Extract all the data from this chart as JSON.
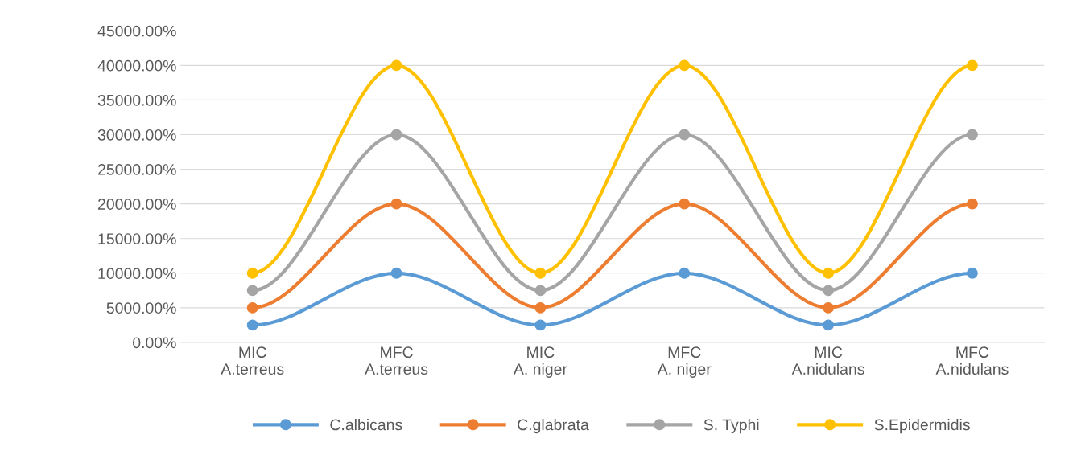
{
  "chart_data": {
    "type": "line",
    "categories": [
      "MIC\nA.terreus",
      "MFC\nA.terreus",
      "MIC\nA. niger",
      "MFC\nA. niger",
      "MIC\nA.nidulans",
      "MFC\nA.nidulans"
    ],
    "series": [
      {
        "name": "C.albicans",
        "color": "#5b9bd5",
        "values": [
          2500,
          10000,
          2500,
          10000,
          2500,
          10000
        ]
      },
      {
        "name": "C.glabrata",
        "color": "#ed7d31",
        "values": [
          5000,
          20000,
          5000,
          20000,
          5000,
          20000
        ]
      },
      {
        "name": "S. Typhi",
        "color": "#a5a5a5",
        "values": [
          7500,
          30000,
          7500,
          30000,
          7500,
          30000
        ]
      },
      {
        "name": "S.Epidermidis",
        "color": "#ffc000",
        "values": [
          10000,
          40000,
          10000,
          40000,
          10000,
          40000
        ]
      }
    ],
    "ylim": [
      0,
      45000
    ],
    "yticks": [
      {
        "value": 0,
        "label": "0.00%"
      },
      {
        "value": 5000,
        "label": "5000.00%"
      },
      {
        "value": 10000,
        "label": "10000.00%"
      },
      {
        "value": 15000,
        "label": "15000.00%"
      },
      {
        "value": 20000,
        "label": "20000.00%"
      },
      {
        "value": 25000,
        "label": "25000.00%"
      },
      {
        "value": 30000,
        "label": "30000.00%"
      },
      {
        "value": 35000,
        "label": "35000.00%"
      },
      {
        "value": 40000,
        "label": "40000.00%"
      },
      {
        "value": 45000,
        "label": "45000.00%"
      }
    ],
    "grid": "y",
    "legend": "bottom",
    "marker": "circle",
    "line_style": "solid"
  }
}
